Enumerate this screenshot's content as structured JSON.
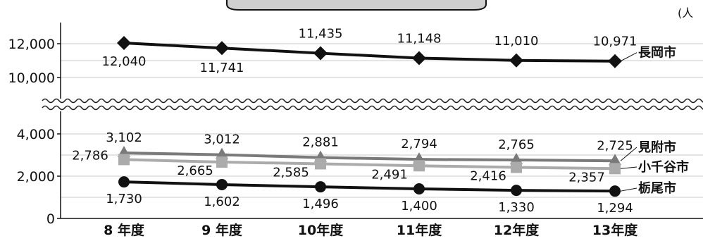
{
  "unit_label": "(人",
  "chart_data": {
    "type": "line",
    "categories": [
      "8 年度",
      "9 年度",
      "10年度",
      "11年度",
      "12年度",
      "13年度"
    ],
    "upper_y_ticks": [
      "12,000",
      "10,000"
    ],
    "lower_y_ticks": [
      "4,000",
      "2,000",
      "0"
    ],
    "axis_break": true,
    "grid": true,
    "series": [
      {
        "name": "長岡市",
        "marker": "diamond",
        "color": "#111111",
        "panel": "upper",
        "values": [
          12040,
          11741,
          11435,
          11148,
          11010,
          10971
        ],
        "labels": [
          "12,040",
          "11,741",
          "11,435",
          "11,148",
          "11,010",
          "10,971"
        ]
      },
      {
        "name": "見附市",
        "marker": "triangle",
        "color": "#7a7a7a",
        "panel": "lower",
        "values": [
          3102,
          3012,
          2881,
          2794,
          2765,
          2725
        ],
        "labels": [
          "3,102",
          "3,012",
          "2,881",
          "2,794",
          "2,765",
          "2,725"
        ]
      },
      {
        "name": "小千谷市",
        "marker": "square",
        "color": "#ababab",
        "panel": "lower",
        "values": [
          2786,
          2665,
          2585,
          2491,
          2416,
          2357
        ],
        "labels": [
          "2,786",
          "2,665",
          "2,585",
          "2,491",
          "2,416",
          "2,357"
        ]
      },
      {
        "name": "栃尾市",
        "marker": "circle",
        "color": "#111111",
        "panel": "lower",
        "values": [
          1730,
          1602,
          1496,
          1400,
          1330,
          1294
        ],
        "labels": [
          "1,730",
          "1,602",
          "1,496",
          "1,400",
          "1,330",
          "1,294"
        ]
      }
    ]
  }
}
